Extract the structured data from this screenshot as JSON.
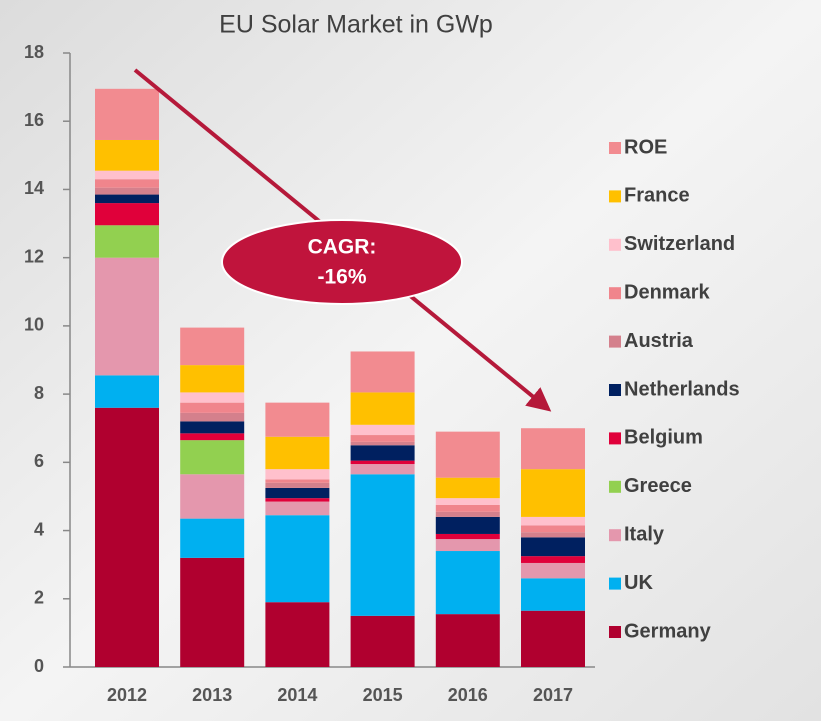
{
  "chart_data": {
    "type": "stacked_bar",
    "title": "EU Solar Market in GWp",
    "annotation": [
      "CAGR:",
      "-16%"
    ],
    "categories": [
      "2012",
      "2013",
      "2014",
      "2015",
      "2016",
      "2017"
    ],
    "ylim": [
      0,
      18
    ],
    "yticks": [
      0,
      2,
      4,
      6,
      8,
      10,
      12,
      14,
      16,
      18
    ],
    "series": [
      {
        "name": "Germany",
        "color": "#b0002f",
        "values": [
          7.6,
          3.2,
          1.9,
          1.5,
          1.55,
          1.65
        ]
      },
      {
        "name": "UK",
        "color": "#00b0f0",
        "values": [
          0.95,
          1.15,
          2.55,
          4.15,
          1.85,
          0.95
        ]
      },
      {
        "name": "Italy",
        "color": "#e497ad",
        "values": [
          3.45,
          1.3,
          0.4,
          0.3,
          0.35,
          0.45
        ]
      },
      {
        "name": "Greece",
        "color": "#92d050",
        "values": [
          0.95,
          1.0,
          0,
          0,
          0,
          0
        ]
      },
      {
        "name": "Belgium",
        "color": "#e0003a",
        "values": [
          0.65,
          0.2,
          0.1,
          0.1,
          0.15,
          0.2
        ]
      },
      {
        "name": "Netherlands",
        "color": "#002060",
        "values": [
          0.25,
          0.35,
          0.3,
          0.45,
          0.5,
          0.55
        ]
      },
      {
        "name": "Austria",
        "color": "#d4808c",
        "values": [
          0.2,
          0.25,
          0.15,
          0.1,
          0.15,
          0.15
        ]
      },
      {
        "name": "Denmark",
        "color": "#f0858c",
        "values": [
          0.25,
          0.3,
          0.1,
          0.2,
          0.2,
          0.2
        ]
      },
      {
        "name": "Switzerland",
        "color": "#ffc0cc",
        "values": [
          0.25,
          0.3,
          0.3,
          0.3,
          0.2,
          0.25
        ]
      },
      {
        "name": "France",
        "color": "#ffc000",
        "values": [
          0.9,
          0.8,
          0.95,
          0.95,
          0.6,
          1.4
        ]
      },
      {
        "name": "ROE",
        "color": "#f28b90",
        "values": [
          1.5,
          1.1,
          1.0,
          1.2,
          1.35,
          1.2
        ]
      }
    ]
  }
}
